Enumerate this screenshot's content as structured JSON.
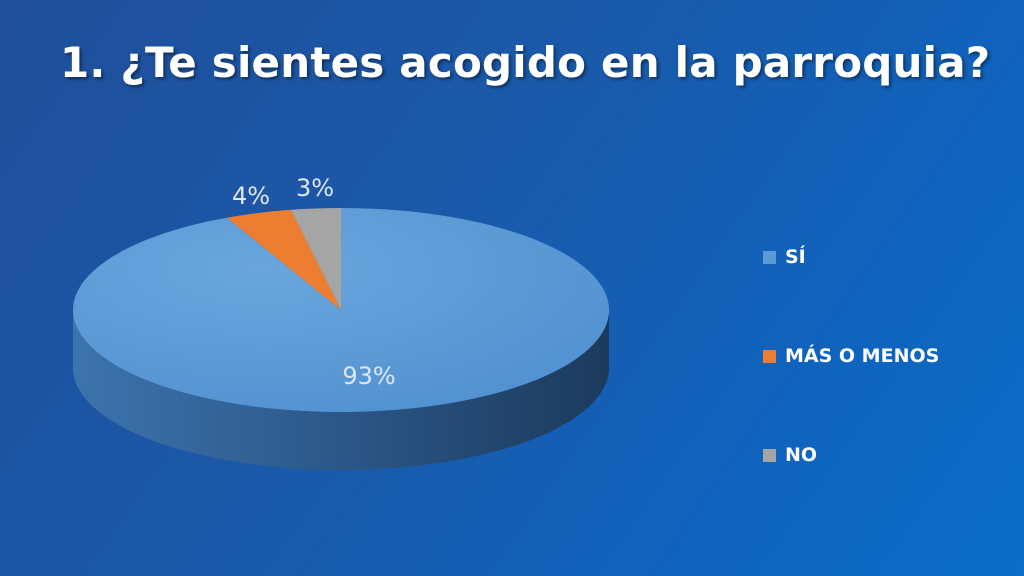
{
  "slide": {
    "title": "1. ¿Te sientes acogido en la parroquia?"
  },
  "chart_data": {
    "type": "pie",
    "style": "3d",
    "categories": [
      "SÍ",
      "MÁS O MENOS",
      "NO"
    ],
    "values": [
      93,
      4,
      3
    ],
    "data_labels": [
      "93%",
      "4%",
      "3%"
    ],
    "colors": [
      "#5b9bd5",
      "#ed7d31",
      "#a5a5a5"
    ],
    "legend": "right",
    "title": "",
    "xlabel": "",
    "ylabel": ""
  }
}
